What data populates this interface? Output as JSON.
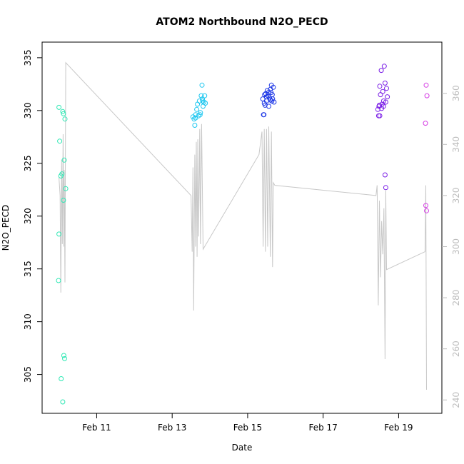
{
  "chart_data": {
    "type": "scatter",
    "title": "ATOM2 Northbound N2O_PECD",
    "xlabel": "Date",
    "ylabel": "N2O_PECD",
    "x_tick_labels": [
      "Feb 11",
      "Feb 13",
      "Feb 15",
      "Feb 17",
      "Feb 19"
    ],
    "x_tick_values": [
      11,
      13,
      15,
      17,
      19
    ],
    "xlim": [
      9.8,
      19.9
    ],
    "ylim": [
      302.2,
      335.6
    ],
    "y_ticks": [
      305,
      310,
      315,
      320,
      325,
      330,
      335
    ],
    "right_axis": {
      "ylim": [
        238.4,
        376.4
      ],
      "ticks": [
        240,
        260,
        280,
        300,
        320,
        340,
        360
      ],
      "color": "#bdbdbd"
    },
    "grid": false,
    "legend": "none",
    "series": [
      {
        "color": "#2ee8b4",
        "points": [
          [
            10.0,
            330.3
          ],
          [
            10.02,
            327.1
          ],
          [
            10.05,
            323.8
          ],
          [
            10.08,
            324.0
          ],
          [
            10.1,
            329.9
          ],
          [
            10.12,
            329.7
          ],
          [
            10.14,
            325.3
          ],
          [
            10.16,
            329.2
          ],
          [
            10.18,
            322.6
          ],
          [
            10.12,
            321.5
          ],
          [
            10.0,
            318.3
          ],
          [
            9.99,
            313.9
          ],
          [
            10.06,
            304.6
          ],
          [
            10.13,
            306.8
          ],
          [
            10.15,
            306.5
          ],
          [
            10.1,
            302.4
          ]
        ]
      },
      {
        "color": "#1ec7f0",
        "points": [
          [
            13.55,
            329.4
          ],
          [
            13.58,
            329.2
          ],
          [
            13.6,
            328.6
          ],
          [
            13.62,
            329.6
          ],
          [
            13.65,
            330.1
          ],
          [
            13.67,
            330.6
          ],
          [
            13.7,
            329.5
          ],
          [
            13.72,
            330.9
          ],
          [
            13.75,
            329.8
          ],
          [
            13.77,
            331.4
          ],
          [
            13.8,
            331.1
          ],
          [
            13.82,
            330.4
          ],
          [
            13.84,
            330.8
          ],
          [
            13.86,
            331.4
          ],
          [
            13.88,
            330.7
          ],
          [
            13.79,
            332.4
          ],
          [
            13.62,
            329.3
          ],
          [
            13.74,
            329.6
          ],
          [
            13.81,
            330.9
          ]
        ]
      },
      {
        "color": "#1c36e6",
        "points": [
          [
            15.4,
            331.1
          ],
          [
            15.42,
            329.6
          ],
          [
            15.44,
            330.7
          ],
          [
            15.46,
            330.5
          ],
          [
            15.48,
            331.6
          ],
          [
            15.5,
            331.3
          ],
          [
            15.52,
            331.9
          ],
          [
            15.54,
            331.4
          ],
          [
            15.56,
            330.4
          ],
          [
            15.58,
            331.2
          ],
          [
            15.6,
            332.0
          ],
          [
            15.62,
            331.7
          ],
          [
            15.63,
            332.4
          ],
          [
            15.64,
            330.9
          ],
          [
            15.66,
            331.1
          ],
          [
            15.68,
            332.2
          ],
          [
            15.7,
            330.8
          ],
          [
            15.45,
            331.5
          ],
          [
            15.55,
            331.7
          ],
          [
            15.6,
            331.0
          ],
          [
            15.65,
            331.5
          ],
          [
            15.5,
            330.9
          ],
          [
            15.43,
            329.6
          ]
        ]
      },
      {
        "color": "#7a1ee6",
        "points": [
          [
            18.45,
            330.1
          ],
          [
            18.47,
            329.5
          ],
          [
            18.49,
            330.5
          ],
          [
            18.5,
            332.3
          ],
          [
            18.52,
            331.5
          ],
          [
            18.54,
            333.8
          ],
          [
            18.56,
            330.6
          ],
          [
            18.58,
            331.8
          ],
          [
            18.6,
            330.9
          ],
          [
            18.62,
            334.2
          ],
          [
            18.64,
            332.6
          ],
          [
            18.66,
            330.8
          ],
          [
            18.68,
            332.1
          ],
          [
            18.7,
            331.3
          ],
          [
            18.5,
            329.5
          ],
          [
            18.55,
            330.2
          ],
          [
            18.6,
            330.4
          ],
          [
            18.64,
            323.9
          ],
          [
            18.66,
            322.7
          ],
          [
            18.48,
            330.4
          ]
        ]
      },
      {
        "color": "#d53ee4",
        "points": [
          [
            19.73,
            332.4
          ],
          [
            19.75,
            331.4
          ],
          [
            19.71,
            328.8
          ],
          [
            19.72,
            321.0
          ],
          [
            19.74,
            320.5
          ]
        ]
      }
    ],
    "line_series": {
      "color": "#c8c8c8",
      "axis": "right",
      "points": [
        [
          10.0,
          327
        ],
        [
          10.03,
          320
        ],
        [
          10.05,
          282
        ],
        [
          10.07,
          334
        ],
        [
          10.09,
          301
        ],
        [
          10.11,
          344
        ],
        [
          10.13,
          300
        ],
        [
          10.14,
          330
        ],
        [
          10.16,
          286
        ],
        [
          10.18,
          372
        ],
        [
          13.5,
          320
        ],
        [
          13.53,
          298
        ],
        [
          13.55,
          331
        ],
        [
          13.57,
          275
        ],
        [
          13.6,
          336
        ],
        [
          13.62,
          300
        ],
        [
          13.64,
          341
        ],
        [
          13.66,
          296
        ],
        [
          13.68,
          342
        ],
        [
          13.7,
          304
        ],
        [
          13.73,
          346
        ],
        [
          13.75,
          301
        ],
        [
          13.78,
          348
        ],
        [
          13.82,
          299
        ],
        [
          15.3,
          336
        ],
        [
          15.38,
          345
        ],
        [
          15.41,
          300
        ],
        [
          15.44,
          346
        ],
        [
          15.47,
          298
        ],
        [
          15.5,
          346
        ],
        [
          15.53,
          300
        ],
        [
          15.56,
          347
        ],
        [
          15.6,
          296
        ],
        [
          15.63,
          345
        ],
        [
          15.66,
          292
        ],
        [
          15.68,
          325
        ],
        [
          15.72,
          324
        ],
        [
          18.4,
          320
        ],
        [
          18.43,
          324
        ],
        [
          18.46,
          277
        ],
        [
          18.49,
          318
        ],
        [
          18.52,
          288
        ],
        [
          18.55,
          310
        ],
        [
          18.58,
          297
        ],
        [
          18.61,
          315
        ],
        [
          18.64,
          256
        ],
        [
          18.66,
          322
        ],
        [
          18.68,
          291
        ],
        [
          19.7,
          298
        ],
        [
          19.72,
          324
        ],
        [
          19.74,
          244
        ]
      ]
    }
  }
}
